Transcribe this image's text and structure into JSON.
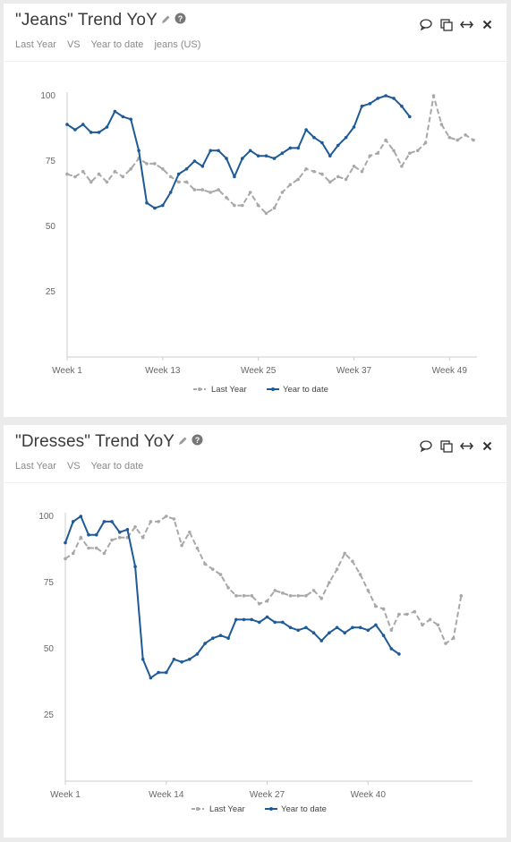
{
  "colors": {
    "last_year": "#a8a8a8",
    "ytd": "#1d5a96",
    "axis": "#cccccc"
  },
  "icons": [
    "edit-icon",
    "help-icon",
    "comment-icon",
    "duplicate-icon",
    "expand-icon",
    "close-icon"
  ],
  "cards": [
    {
      "title": "\"Jeans\" Trend YoY",
      "subtitle": {
        "period_a": "Last Year",
        "vs": "VS",
        "period_b": "Year to date",
        "filter": "jeans (US)"
      },
      "legend": {
        "last_year": "Last Year",
        "ytd": "Year to date"
      }
    },
    {
      "title": "\"Dresses\" Trend YoY",
      "subtitle": {
        "period_a": "Last Year",
        "vs": "VS",
        "period_b": "Year to date",
        "filter": ""
      },
      "legend": {
        "last_year": "Last Year",
        "ytd": "Year to date"
      }
    }
  ],
  "chart_data": [
    {
      "type": "line",
      "title": "\"Jeans\" Trend YoY",
      "x_start_week": 1,
      "xticks": [
        1,
        13,
        25,
        37,
        49
      ],
      "xtick_labels": [
        "Week 1",
        "Week 13",
        "Week 25",
        "Week 37",
        "Week 49"
      ],
      "yticks": [
        25,
        50,
        75,
        100
      ],
      "ylim": [
        0,
        100
      ],
      "xlim": [
        1,
        52
      ],
      "legend_position": "bottom-center",
      "series": [
        {
          "name": "Last Year",
          "style": "dashed",
          "values": [
            70,
            69,
            71,
            67,
            70,
            67,
            71,
            69,
            72,
            76,
            74,
            74,
            72,
            69,
            67,
            67,
            64,
            64,
            63,
            64,
            61,
            58,
            58,
            63,
            58,
            55,
            57,
            63,
            66,
            68,
            72,
            71,
            70,
            67,
            69,
            68,
            73,
            71,
            77,
            78,
            83,
            79,
            73,
            78,
            79,
            82,
            100,
            89,
            84,
            83,
            85,
            83
          ]
        },
        {
          "name": "Year to date",
          "style": "solid",
          "values": [
            89,
            87,
            89,
            86,
            86,
            88,
            94,
            92,
            91,
            79,
            59,
            57,
            58,
            63,
            70,
            72,
            75,
            73,
            79,
            79,
            76,
            69,
            76,
            79,
            77,
            77,
            76,
            78,
            80,
            80,
            87,
            84,
            82,
            77,
            81,
            84,
            88,
            96,
            97,
            99,
            100,
            99,
            96,
            92
          ]
        }
      ]
    },
    {
      "type": "line",
      "title": "\"Dresses\" Trend YoY",
      "x_start_week": 1,
      "xticks": [
        1,
        14,
        27,
        40
      ],
      "xtick_labels": [
        "Week 1",
        "Week 14",
        "Week 27",
        "Week 40"
      ],
      "yticks": [
        25,
        50,
        75,
        100
      ],
      "ylim": [
        0,
        100
      ],
      "xlim": [
        1,
        53
      ],
      "legend_position": "bottom-center",
      "series": [
        {
          "name": "Last Year",
          "style": "dashed",
          "values": [
            84,
            86,
            92,
            88,
            88,
            86,
            91,
            92,
            92,
            96,
            92,
            98,
            98,
            100,
            99,
            89,
            94,
            88,
            82,
            80,
            78,
            73,
            70,
            70,
            70,
            67,
            68,
            72,
            71,
            70,
            70,
            70,
            72,
            69,
            75,
            80,
            86,
            83,
            78,
            72,
            66,
            65,
            57,
            63,
            63,
            64,
            59,
            61,
            59,
            52,
            54,
            70
          ]
        },
        {
          "name": "Year to date",
          "style": "solid",
          "values": [
            90,
            98,
            100,
            93,
            93,
            98,
            98,
            94,
            95,
            81,
            46,
            39,
            41,
            41,
            46,
            45,
            46,
            48,
            52,
            54,
            55,
            54,
            61,
            61,
            61,
            60,
            62,
            60,
            60,
            58,
            57,
            58,
            56,
            53,
            56,
            58,
            56,
            58,
            58,
            57,
            59,
            55,
            50,
            48
          ]
        }
      ]
    }
  ]
}
